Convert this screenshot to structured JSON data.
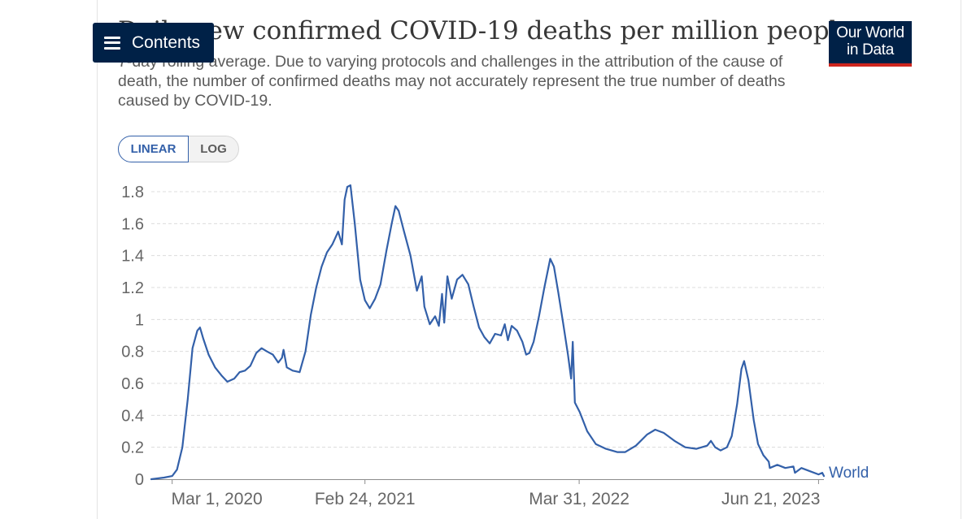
{
  "header": {
    "title": "Daily new confirmed COVID-19 deaths per million people",
    "subtitle": "7-day rolling average. Due to varying protocols and challenges in the attribution of the cause of death, the number of confirmed deaths may not accurately represent the true number of deaths caused by COVID-19.",
    "contents_label": "Contents",
    "logo_line1": "Our World",
    "logo_line2": "in Data"
  },
  "controls": {
    "linear_label": "LINEAR",
    "log_label": "LOG",
    "selected": "LINEAR"
  },
  "colors": {
    "series": "#3360a9",
    "navy": "#002147",
    "logo_accent": "#ce261e"
  },
  "icons": [
    "menu-icon"
  ],
  "chart_data": {
    "type": "line",
    "title": "Daily new confirmed COVID-19 deaths per million people",
    "xlabel": "",
    "ylabel": "",
    "ylim": [
      0,
      1.8
    ],
    "y_ticks": [
      0,
      0.2,
      0.4,
      0.6,
      0.8,
      1,
      1.2,
      1.4,
      1.6,
      1.8
    ],
    "y_tick_labels": [
      "0",
      "0.2",
      "0.4",
      "0.6",
      "0.8",
      "1",
      "1.2",
      "1.4",
      "1.6",
      "1.8"
    ],
    "x_range": [
      "2020-01-22",
      "2023-07-01"
    ],
    "x_ticks": [
      "2020-03-01",
      "2021-02-24",
      "2022-03-31",
      "2023-06-21"
    ],
    "x_tick_labels": [
      "Mar 1, 2020",
      "Feb 24, 2021",
      "Mar 31, 2022",
      "Jun 21, 2023"
    ],
    "grid": "horizontal dashed",
    "legend": "end-of-line label",
    "series": [
      {
        "name": "World",
        "points": [
          [
            "2020-01-22",
            0.0
          ],
          [
            "2020-02-15",
            0.01
          ],
          [
            "2020-03-01",
            0.02
          ],
          [
            "2020-03-10",
            0.06
          ],
          [
            "2020-03-20",
            0.2
          ],
          [
            "2020-03-30",
            0.5
          ],
          [
            "2020-04-08",
            0.82
          ],
          [
            "2020-04-17",
            0.93
          ],
          [
            "2020-04-22",
            0.95
          ],
          [
            "2020-04-28",
            0.88
          ],
          [
            "2020-05-08",
            0.78
          ],
          [
            "2020-05-20",
            0.7
          ],
          [
            "2020-06-01",
            0.65
          ],
          [
            "2020-06-12",
            0.61
          ],
          [
            "2020-06-25",
            0.63
          ],
          [
            "2020-07-05",
            0.67
          ],
          [
            "2020-07-15",
            0.68
          ],
          [
            "2020-07-25",
            0.71
          ],
          [
            "2020-08-05",
            0.79
          ],
          [
            "2020-08-15",
            0.82
          ],
          [
            "2020-08-25",
            0.8
          ],
          [
            "2020-09-05",
            0.78
          ],
          [
            "2020-09-15",
            0.73
          ],
          [
            "2020-09-22",
            0.76
          ],
          [
            "2020-09-25",
            0.81
          ],
          [
            "2020-10-01",
            0.7
          ],
          [
            "2020-10-12",
            0.68
          ],
          [
            "2020-10-25",
            0.67
          ],
          [
            "2020-11-05",
            0.8
          ],
          [
            "2020-11-15",
            1.03
          ],
          [
            "2020-11-25",
            1.2
          ],
          [
            "2020-12-05",
            1.33
          ],
          [
            "2020-12-15",
            1.42
          ],
          [
            "2020-12-25",
            1.47
          ],
          [
            "2021-01-05",
            1.55
          ],
          [
            "2021-01-12",
            1.47
          ],
          [
            "2021-01-17",
            1.75
          ],
          [
            "2021-01-22",
            1.83
          ],
          [
            "2021-01-28",
            1.84
          ],
          [
            "2021-02-05",
            1.6
          ],
          [
            "2021-02-15",
            1.25
          ],
          [
            "2021-02-24",
            1.12
          ],
          [
            "2021-03-05",
            1.07
          ],
          [
            "2021-03-15",
            1.13
          ],
          [
            "2021-03-25",
            1.22
          ],
          [
            "2021-04-05",
            1.43
          ],
          [
            "2021-04-15",
            1.6
          ],
          [
            "2021-04-22",
            1.71
          ],
          [
            "2021-04-28",
            1.68
          ],
          [
            "2021-05-08",
            1.55
          ],
          [
            "2021-05-20",
            1.4
          ],
          [
            "2021-06-01",
            1.18
          ],
          [
            "2021-06-10",
            1.27
          ],
          [
            "2021-06-15",
            1.08
          ],
          [
            "2021-06-25",
            0.97
          ],
          [
            "2021-07-05",
            1.02
          ],
          [
            "2021-07-12",
            0.96
          ],
          [
            "2021-07-18",
            1.16
          ],
          [
            "2021-07-22",
            0.98
          ],
          [
            "2021-07-28",
            1.27
          ],
          [
            "2021-08-05",
            1.13
          ],
          [
            "2021-08-15",
            1.25
          ],
          [
            "2021-08-25",
            1.28
          ],
          [
            "2021-09-05",
            1.22
          ],
          [
            "2021-09-15",
            1.08
          ],
          [
            "2021-09-25",
            0.95
          ],
          [
            "2021-10-05",
            0.89
          ],
          [
            "2021-10-15",
            0.85
          ],
          [
            "2021-10-25",
            0.91
          ],
          [
            "2021-11-05",
            0.9
          ],
          [
            "2021-11-12",
            0.97
          ],
          [
            "2021-11-18",
            0.87
          ],
          [
            "2021-11-25",
            0.96
          ],
          [
            "2021-12-05",
            0.93
          ],
          [
            "2021-12-15",
            0.86
          ],
          [
            "2021-12-22",
            0.78
          ],
          [
            "2021-12-28",
            0.79
          ],
          [
            "2022-01-05",
            0.86
          ],
          [
            "2022-01-15",
            1.02
          ],
          [
            "2022-01-25",
            1.2
          ],
          [
            "2022-02-05",
            1.38
          ],
          [
            "2022-02-12",
            1.33
          ],
          [
            "2022-02-20",
            1.17
          ],
          [
            "2022-03-01",
            0.98
          ],
          [
            "2022-03-10",
            0.78
          ],
          [
            "2022-03-16",
            0.63
          ],
          [
            "2022-03-19",
            0.86
          ],
          [
            "2022-03-23",
            0.48
          ],
          [
            "2022-04-01",
            0.42
          ],
          [
            "2022-04-15",
            0.3
          ],
          [
            "2022-05-01",
            0.22
          ],
          [
            "2022-05-20",
            0.19
          ],
          [
            "2022-06-10",
            0.17
          ],
          [
            "2022-06-25",
            0.17
          ],
          [
            "2022-07-15",
            0.21
          ],
          [
            "2022-08-05",
            0.28
          ],
          [
            "2022-08-20",
            0.31
          ],
          [
            "2022-09-05",
            0.29
          ],
          [
            "2022-09-25",
            0.24
          ],
          [
            "2022-10-15",
            0.2
          ],
          [
            "2022-11-05",
            0.19
          ],
          [
            "2022-11-25",
            0.21
          ],
          [
            "2022-12-02",
            0.24
          ],
          [
            "2022-12-10",
            0.2
          ],
          [
            "2022-12-20",
            0.18
          ],
          [
            "2023-01-01",
            0.2
          ],
          [
            "2023-01-10",
            0.27
          ],
          [
            "2023-01-20",
            0.47
          ],
          [
            "2023-01-28",
            0.69
          ],
          [
            "2023-02-02",
            0.74
          ],
          [
            "2023-02-10",
            0.62
          ],
          [
            "2023-02-20",
            0.37
          ],
          [
            "2023-02-28",
            0.22
          ],
          [
            "2023-03-10",
            0.15
          ],
          [
            "2023-03-20",
            0.11
          ],
          [
            "2023-03-22",
            0.07
          ],
          [
            "2023-04-05",
            0.09
          ],
          [
            "2023-04-20",
            0.07
          ],
          [
            "2023-05-05",
            0.08
          ],
          [
            "2023-05-08",
            0.04
          ],
          [
            "2023-05-20",
            0.07
          ],
          [
            "2023-06-05",
            0.05
          ],
          [
            "2023-06-21",
            0.03
          ],
          [
            "2023-06-28",
            0.04
          ],
          [
            "2023-07-01",
            0.02
          ]
        ]
      }
    ]
  }
}
